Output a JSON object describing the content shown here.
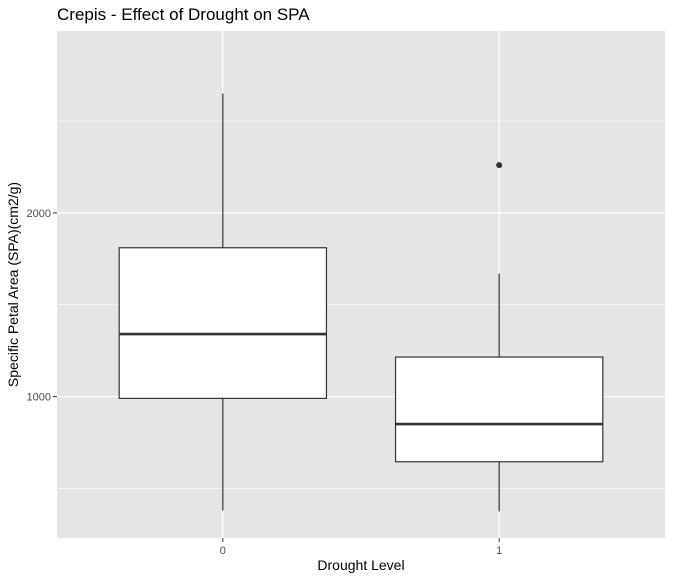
{
  "chart_data": {
    "type": "boxplot",
    "title": "Crepis - Effect of Drought on SPA",
    "xlabel": "Drought Level",
    "ylabel": "Specific Petal Area (SPA)(cm2/g)",
    "categories": [
      "0",
      "1"
    ],
    "ylim": [
      230,
      2990
    ],
    "y_ticks": [
      1000,
      2000
    ],
    "y_tick_labels": [
      "1000",
      "2000"
    ],
    "y_minor_ticks": [
      500,
      1500,
      2500
    ],
    "grid": true,
    "boxes": [
      {
        "category": "0",
        "whisker_low": 380,
        "q1": 990,
        "median": 1340,
        "q3": 1810,
        "whisker_high": 2650,
        "outliers": []
      },
      {
        "category": "1",
        "whisker_low": 375,
        "q1": 645,
        "median": 850,
        "q3": 1215,
        "whisker_high": 1670,
        "outliers": [
          2260
        ]
      }
    ],
    "colors": {
      "panel_bg": "#e5e5e5",
      "grid": "#ffffff",
      "box_fill": "#ffffff",
      "box_stroke": "#333333",
      "text": "#000000",
      "tick_text": "#4d4d4d"
    }
  }
}
